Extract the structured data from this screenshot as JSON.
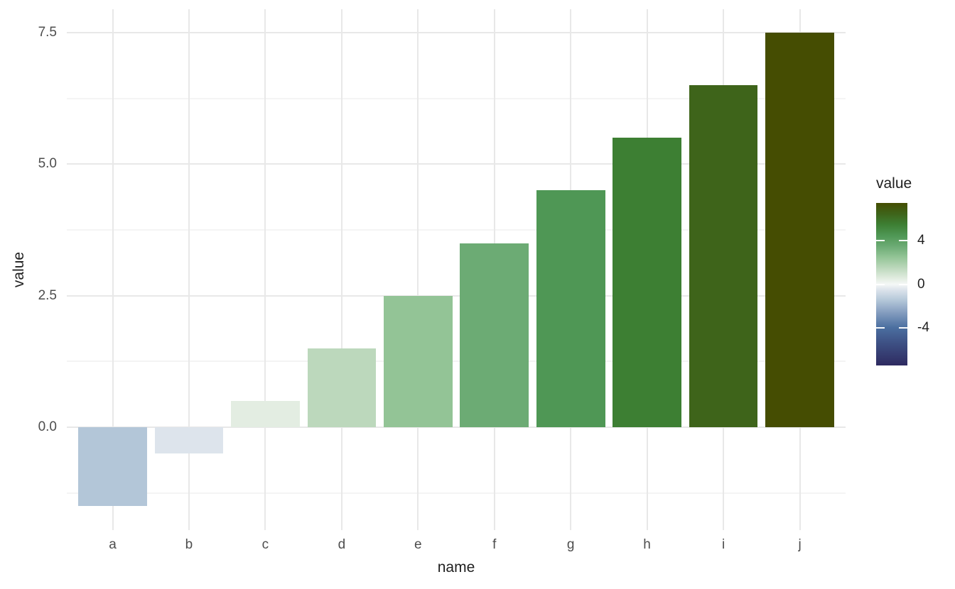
{
  "chart_data": {
    "type": "bar",
    "title": "",
    "categories": [
      "a",
      "b",
      "c",
      "d",
      "e",
      "f",
      "g",
      "h",
      "i",
      "j"
    ],
    "values": [
      -1.5,
      -0.5,
      0.5,
      1.5,
      2.5,
      3.5,
      4.5,
      5.5,
      6.5,
      7.5
    ],
    "bar_colors": [
      "#b3c6d8",
      "#dde4ec",
      "#e3ede2",
      "#bcd8bc",
      "#93c496",
      "#6cab74",
      "#4f9755",
      "#3d7f33",
      "#3e641a",
      "#454d02"
    ],
    "xlabel": "name",
    "ylabel": "value",
    "ylim": [
      -1.95,
      7.95
    ],
    "grid": true,
    "y_major_ticks": [
      0.0,
      2.5,
      5.0,
      7.5
    ],
    "y_tick_labels": [
      "0.0",
      "2.5",
      "5.0",
      "7.5"
    ],
    "y_minor_ticks": [
      -1.25,
      1.25,
      3.75,
      6.25
    ],
    "legend": {
      "title": "value",
      "position": "right",
      "type": "colorbar",
      "domain": [
        -7.5,
        7.5
      ],
      "ticks": [
        4,
        0,
        -4
      ],
      "tick_labels": [
        "4",
        "0",
        "-4"
      ],
      "gradient_stops": [
        {
          "value": 7.5,
          "color": "#454d02"
        },
        {
          "value": 6.5,
          "color": "#3e641a"
        },
        {
          "value": 5.5,
          "color": "#3d7f33"
        },
        {
          "value": 4.5,
          "color": "#4f9755"
        },
        {
          "value": 3.5,
          "color": "#6cab74"
        },
        {
          "value": 2.5,
          "color": "#93c496"
        },
        {
          "value": 1.5,
          "color": "#bcd8bc"
        },
        {
          "value": 0.5,
          "color": "#e3ede2"
        },
        {
          "value": 0.0,
          "color": "#f5f8f7"
        },
        {
          "value": -0.5,
          "color": "#dde4ec"
        },
        {
          "value": -1.5,
          "color": "#b3c6d8"
        },
        {
          "value": -2.5,
          "color": "#89a1c2"
        },
        {
          "value": -4.0,
          "color": "#4b6fa0"
        },
        {
          "value": -5.5,
          "color": "#3d4f83"
        },
        {
          "value": -7.5,
          "color": "#2e2a60"
        }
      ]
    }
  },
  "styles": {
    "background": "#ffffff",
    "major_grid_color": "#e8e8e8",
    "minor_grid_color": "#f4f4f4",
    "tick_label_color": "#4d4d4d",
    "title_color": "#1f1f1f"
  }
}
